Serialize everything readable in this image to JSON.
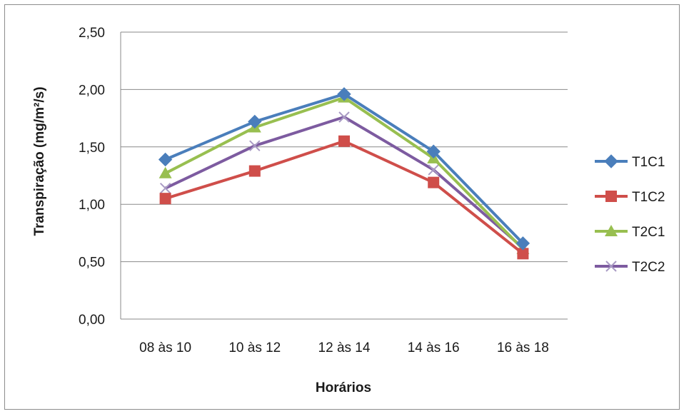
{
  "chart_data": {
    "type": "line",
    "title": "",
    "xlabel": "Horários",
    "ylabel": "Transpiração (mg/m²/s)",
    "categories": [
      "08 às 10",
      "10  às 12",
      "12 às 14",
      "14 às 16",
      "16 às 18"
    ],
    "ylim": [
      0,
      2.5
    ],
    "yticks": [
      "0,00",
      "0,50",
      "1,00",
      "1,50",
      "2,00",
      "2,50"
    ],
    "grid": true,
    "legend_position": "right",
    "series": [
      {
        "name": "T1C1",
        "color": "#4a7ebb",
        "marker": "diamond",
        "values": [
          1.39,
          1.72,
          1.96,
          1.46,
          0.66
        ]
      },
      {
        "name": "T1C2",
        "color": "#cf4e4a",
        "marker": "square",
        "values": [
          1.05,
          1.29,
          1.55,
          1.19,
          0.57
        ]
      },
      {
        "name": "T2C1",
        "color": "#98bf50",
        "marker": "triangle",
        "values": [
          1.27,
          1.67,
          1.93,
          1.4,
          0.61
        ]
      },
      {
        "name": "T2C2",
        "color": "#7d5ba0",
        "marker": "x",
        "values": [
          1.14,
          1.51,
          1.76,
          1.3,
          0.62
        ]
      }
    ]
  }
}
